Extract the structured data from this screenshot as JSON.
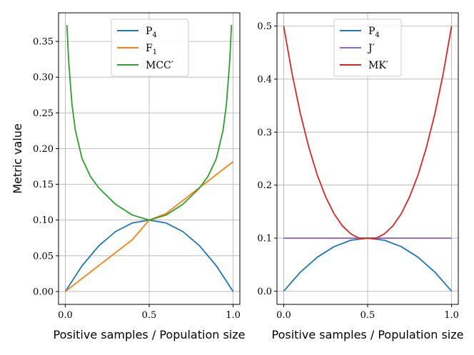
{
  "colors": {
    "p4": "#1f77b4",
    "f1": "#ff7f0e",
    "mcc": "#2ca02c",
    "j": "#9467bd",
    "mk": "#d62728"
  },
  "chart_data": [
    {
      "type": "line",
      "title": "",
      "xlabel": "Positive samples / Population size",
      "ylabel": "Metric value",
      "xlim": [
        -0.04,
        1.04
      ],
      "ylim": [
        -0.018,
        0.39
      ],
      "xticks": [
        0,
        0.5,
        1
      ],
      "xtick_labels": [
        "0.0",
        "0.5",
        "1.0"
      ],
      "yticks": [
        0,
        0.05,
        0.1,
        0.15,
        0.2,
        0.25,
        0.3,
        0.35
      ],
      "ytick_labels": [
        "0.00",
        "0.05",
        "0.10",
        "0.15",
        "0.20",
        "0.25",
        "0.30",
        "0.35"
      ],
      "grid": true,
      "legend_position": "top-center",
      "series": [
        {
          "name": "P",
          "sub": "4",
          "prime": "",
          "color_key": "p4",
          "x": [
            0.0,
            0.1,
            0.2,
            0.3,
            0.4,
            0.5,
            0.6,
            0.7,
            0.8,
            0.9,
            1.0
          ],
          "y": [
            0.0,
            0.036,
            0.064,
            0.084,
            0.096,
            0.1,
            0.096,
            0.084,
            0.064,
            0.036,
            0.0
          ]
        },
        {
          "name": "F",
          "sub": "1",
          "prime": "",
          "color_key": "f1",
          "x": [
            0.0,
            0.1,
            0.2,
            0.3,
            0.4,
            0.5,
            0.6,
            0.7,
            0.8,
            0.9,
            1.0
          ],
          "y": [
            0.0,
            0.0182,
            0.0364,
            0.0545,
            0.0727,
            0.1,
            0.1091,
            0.1273,
            0.1455,
            0.1636,
            0.1818
          ]
        },
        {
          "name": "MCC",
          "sub": "",
          "prime": "′",
          "color_key": "mcc",
          "x": [
            0.01,
            0.02,
            0.04,
            0.06,
            0.1,
            0.15,
            0.2,
            0.3,
            0.4,
            0.5,
            0.6,
            0.7,
            0.8,
            0.85,
            0.9,
            0.94,
            0.96,
            0.98,
            0.99
          ],
          "y": [
            0.373,
            0.324,
            0.262,
            0.226,
            0.186,
            0.161,
            0.145,
            0.122,
            0.107,
            0.1,
            0.107,
            0.122,
            0.145,
            0.161,
            0.186,
            0.226,
            0.262,
            0.324,
            0.373
          ]
        }
      ]
    },
    {
      "type": "line",
      "title": "",
      "xlabel": "Positive samples / Population size",
      "ylabel": "",
      "xlim": [
        -0.04,
        1.04
      ],
      "ylim": [
        -0.025,
        0.525
      ],
      "xticks": [
        0,
        0.5,
        1
      ],
      "xtick_labels": [
        "0.0",
        "0.5",
        "1.0"
      ],
      "yticks": [
        0,
        0.1,
        0.2,
        0.3,
        0.4,
        0.5
      ],
      "ytick_labels": [
        "0.0",
        "0.1",
        "0.2",
        "0.3",
        "0.4",
        "0.5"
      ],
      "grid": true,
      "legend_position": "top-center",
      "series": [
        {
          "name": "P",
          "sub": "4",
          "prime": "",
          "color_key": "p4",
          "x": [
            0.0,
            0.1,
            0.2,
            0.3,
            0.4,
            0.5,
            0.6,
            0.7,
            0.8,
            0.9,
            1.0
          ],
          "y": [
            0.0,
            0.036,
            0.064,
            0.084,
            0.096,
            0.1,
            0.096,
            0.084,
            0.064,
            0.036,
            0.0
          ]
        },
        {
          "name": "J",
          "sub": "",
          "prime": "′",
          "color_key": "j",
          "x": [
            0.0,
            0.5,
            1.0
          ],
          "y": [
            0.1,
            0.1,
            0.1
          ]
        },
        {
          "name": "MK",
          "sub": "",
          "prime": "′",
          "color_key": "mk",
          "x": [
            0.0,
            0.05,
            0.1,
            0.15,
            0.2,
            0.25,
            0.3,
            0.35,
            0.4,
            0.45,
            0.5,
            0.55,
            0.6,
            0.65,
            0.7,
            0.75,
            0.8,
            0.85,
            0.9,
            0.95,
            1.0
          ],
          "y": [
            0.5,
            0.41,
            0.334,
            0.271,
            0.219,
            0.178,
            0.146,
            0.123,
            0.108,
            0.1,
            0.1,
            0.1,
            0.108,
            0.123,
            0.146,
            0.178,
            0.219,
            0.271,
            0.334,
            0.41,
            0.5
          ]
        }
      ]
    }
  ]
}
